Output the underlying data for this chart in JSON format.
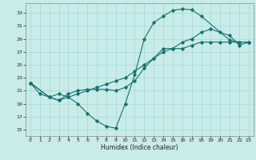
{
  "xlabel": "Humidex (Indice chaleur)",
  "bg_color": "#c8ece8",
  "line_color": "#1a7070",
  "grid_color": "#a8d8d4",
  "xlim": [
    -0.5,
    23.5
  ],
  "ylim": [
    14.0,
    34.5
  ],
  "xticks": [
    0,
    1,
    2,
    3,
    4,
    5,
    6,
    7,
    8,
    9,
    10,
    11,
    12,
    13,
    14,
    15,
    16,
    17,
    18,
    19,
    20,
    21,
    22,
    23
  ],
  "yticks": [
    15,
    17,
    19,
    21,
    23,
    25,
    27,
    29,
    31,
    33
  ],
  "curve1_x": [
    0,
    1,
    2,
    3,
    4,
    5,
    6,
    7,
    8,
    9,
    10,
    11,
    12,
    13,
    14,
    15,
    16,
    17,
    18,
    21,
    22,
    23
  ],
  "curve1_y": [
    22.2,
    20.5,
    20.0,
    20.5,
    20.0,
    19.0,
    17.5,
    16.3,
    15.5,
    15.2,
    19.0,
    23.5,
    29.0,
    31.5,
    32.5,
    33.4,
    33.6,
    33.5,
    32.5,
    28.8,
    28.5,
    28.5
  ],
  "curve2_x": [
    0,
    2,
    3,
    4,
    5,
    6,
    7,
    8,
    9,
    10,
    11,
    12,
    13,
    14,
    15,
    16,
    17,
    18,
    19,
    20,
    21,
    22,
    23
  ],
  "curve2_y": [
    22.2,
    20.0,
    19.5,
    20.5,
    21.0,
    21.2,
    21.2,
    21.2,
    21.0,
    21.5,
    22.5,
    24.5,
    26.0,
    27.5,
    27.5,
    28.5,
    29.0,
    30.0,
    30.5,
    30.0,
    29.5,
    28.0,
    28.5
  ],
  "curve3_x": [
    0,
    2,
    3,
    4,
    5,
    6,
    7,
    8,
    9,
    10,
    11,
    12,
    13,
    14,
    15,
    16,
    17,
    18,
    19,
    20,
    21,
    22,
    23
  ],
  "curve3_y": [
    22.2,
    20.0,
    19.5,
    20.0,
    20.5,
    21.0,
    21.5,
    22.0,
    22.5,
    23.0,
    24.0,
    25.0,
    26.0,
    27.0,
    27.5,
    27.5,
    28.0,
    28.5,
    28.5,
    28.5,
    28.5,
    28.5,
    28.5
  ]
}
